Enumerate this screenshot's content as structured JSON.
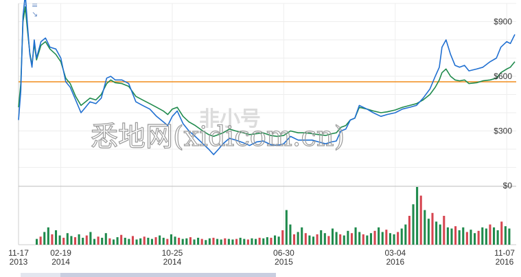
{
  "chart_data": {
    "type": "line",
    "x_tick_labels": [
      {
        "date": "11-17",
        "year": "2013"
      },
      {
        "date": "02-19",
        "year": "2014"
      },
      {
        "date": "10-25",
        "year": "2014"
      },
      {
        "date": "06-30",
        "year": "2015"
      },
      {
        "date": "03-04",
        "year": "2016"
      },
      {
        "date": "11-07",
        "year": "2016"
      }
    ],
    "y_ticks": [
      "$900",
      "$600",
      "$300",
      "$0"
    ],
    "ylim": [
      0,
      1000
    ],
    "reference_line": 570,
    "watermark": "悉地网(xidicom.cn)",
    "watermark_logo": "非小号",
    "series": [
      {
        "color": "#1f6fd1",
        "x": [
          "2013-11-17",
          "2013-11-22",
          "2013-11-27",
          "2013-12-02",
          "2013-12-07",
          "2013-12-12",
          "2013-12-17",
          "2013-12-22",
          "2013-12-27",
          "2014-01-06",
          "2014-01-16",
          "2014-01-26",
          "2014-02-08",
          "2014-02-19",
          "2014-03-02",
          "2014-03-12",
          "2014-03-24",
          "2014-04-05",
          "2014-04-15",
          "2014-04-25",
          "2014-05-08",
          "2014-05-20",
          "2014-06-01",
          "2014-06-10",
          "2014-06-20",
          "2014-07-05",
          "2014-07-20",
          "2014-08-05",
          "2014-08-20",
          "2014-09-05",
          "2014-09-20",
          "2014-10-05",
          "2014-10-15",
          "2014-10-25",
          "2014-11-05",
          "2014-11-18",
          "2014-12-01",
          "2014-12-15",
          "2015-01-01",
          "2015-01-14",
          "2015-01-25",
          "2015-02-05",
          "2015-02-15",
          "2015-03-01",
          "2015-03-15",
          "2015-04-01",
          "2015-04-15",
          "2015-05-01",
          "2015-05-15",
          "2015-06-01",
          "2015-06-15",
          "2015-06-30",
          "2015-07-15",
          "2015-08-01",
          "2015-08-15",
          "2015-09-01",
          "2015-09-15",
          "2015-10-01",
          "2015-10-15",
          "2015-10-25",
          "2015-11-04",
          "2015-11-15",
          "2015-11-25",
          "2015-12-05",
          "2015-12-15",
          "2016-01-01",
          "2016-01-15",
          "2016-02-01",
          "2016-02-15",
          "2016-03-04",
          "2016-03-20",
          "2016-04-05",
          "2016-04-20",
          "2016-05-05",
          "2016-05-20",
          "2016-06-01",
          "2016-06-10",
          "2016-06-16",
          "2016-06-25",
          "2016-07-05",
          "2016-07-15",
          "2016-07-25",
          "2016-08-05",
          "2016-08-15",
          "2016-09-01",
          "2016-09-15",
          "2016-10-01",
          "2016-10-15",
          "2016-10-25",
          "2016-11-07",
          "2016-11-15",
          "2016-11-25"
        ],
        "y": [
          360,
          520,
          930,
          1050,
          880,
          720,
          650,
          800,
          700,
          790,
          810,
          760,
          750,
          700,
          570,
          540,
          470,
          400,
          430,
          460,
          450,
          480,
          590,
          600,
          580,
          580,
          560,
          460,
          440,
          420,
          380,
          350,
          330,
          380,
          410,
          340,
          300,
          270,
          230,
          200,
          170,
          200,
          230,
          260,
          250,
          235,
          220,
          240,
          245,
          225,
          220,
          230,
          270,
          250,
          250,
          250,
          240,
          230,
          240,
          245,
          300,
          310,
          360,
          370,
          440,
          420,
          400,
          380,
          390,
          400,
          420,
          430,
          440,
          480,
          530,
          600,
          650,
          760,
          800,
          720,
          660,
          650,
          660,
          630,
          640,
          650,
          680,
          700,
          760,
          790,
          780,
          830
        ]
      },
      {
        "color": "#1f8a4c",
        "x": [
          "2013-11-17",
          "2013-11-22",
          "2013-11-27",
          "2013-12-02",
          "2013-12-07",
          "2013-12-12",
          "2013-12-17",
          "2013-12-22",
          "2013-12-27",
          "2014-01-06",
          "2014-01-16",
          "2014-01-26",
          "2014-02-08",
          "2014-02-19",
          "2014-03-02",
          "2014-03-12",
          "2014-03-24",
          "2014-04-05",
          "2014-04-15",
          "2014-04-25",
          "2014-05-08",
          "2014-05-20",
          "2014-06-01",
          "2014-06-10",
          "2014-06-20",
          "2014-07-05",
          "2014-07-20",
          "2014-08-05",
          "2014-08-20",
          "2014-09-05",
          "2014-09-20",
          "2014-10-05",
          "2014-10-15",
          "2014-10-25",
          "2014-11-05",
          "2014-11-18",
          "2014-12-01",
          "2014-12-15",
          "2015-01-01",
          "2015-01-14",
          "2015-01-25",
          "2015-02-05",
          "2015-02-15",
          "2015-03-01",
          "2015-03-15",
          "2015-04-01",
          "2015-04-15",
          "2015-05-01",
          "2015-05-15",
          "2015-06-01",
          "2015-06-15",
          "2015-06-30",
          "2015-07-15",
          "2015-08-01",
          "2015-08-15",
          "2015-09-01",
          "2015-09-15",
          "2015-10-01",
          "2015-10-15",
          "2015-10-25",
          "2015-11-04",
          "2015-11-15",
          "2015-11-25",
          "2015-12-05",
          "2015-12-15",
          "2016-01-01",
          "2016-01-15",
          "2016-02-01",
          "2016-02-15",
          "2016-03-04",
          "2016-03-20",
          "2016-04-05",
          "2016-04-20",
          "2016-05-05",
          "2016-05-20",
          "2016-06-01",
          "2016-06-10",
          "2016-06-16",
          "2016-06-25",
          "2016-07-05",
          "2016-07-15",
          "2016-07-25",
          "2016-08-05",
          "2016-08-15",
          "2016-09-01",
          "2016-09-15",
          "2016-10-01",
          "2016-10-15",
          "2016-10-25",
          "2016-11-07",
          "2016-11-15",
          "2016-11-25"
        ],
        "y": [
          430,
          560,
          900,
          980,
          850,
          730,
          660,
          780,
          690,
          770,
          790,
          750,
          720,
          680,
          590,
          560,
          490,
          440,
          460,
          480,
          470,
          500,
          560,
          580,
          565,
          560,
          545,
          490,
          470,
          450,
          430,
          410,
          390,
          420,
          430,
          380,
          350,
          330,
          300,
          280,
          270,
          280,
          290,
          310,
          300,
          290,
          280,
          285,
          290,
          275,
          270,
          275,
          300,
          290,
          290,
          285,
          280,
          275,
          285,
          290,
          320,
          330,
          360,
          370,
          430,
          420,
          410,
          400,
          405,
          415,
          430,
          440,
          450,
          470,
          500,
          540,
          580,
          620,
          640,
          600,
          580,
          575,
          580,
          560,
          565,
          575,
          580,
          590,
          620,
          640,
          650,
          680
        ]
      }
    ],
    "volume": {
      "color_up": "#1f8a4c",
      "color_down": "#d64550",
      "values": [
        0.1,
        0.14,
        0.22,
        0.3,
        0.18,
        0.25,
        0.16,
        0.12,
        0.2,
        0.15,
        0.13,
        0.18,
        0.12,
        0.16,
        0.22,
        0.1,
        0.14,
        0.12,
        0.2,
        0.11,
        0.09,
        0.13,
        0.17,
        0.12,
        0.1,
        0.15,
        0.09,
        0.11,
        0.14,
        0.12,
        0.1,
        0.13,
        0.16,
        0.12,
        0.1,
        0.18,
        0.14,
        0.12,
        0.1,
        0.11,
        0.13,
        0.09,
        0.12,
        0.1,
        0.08,
        0.11,
        0.12,
        0.1,
        0.09,
        0.11,
        0.1,
        0.09,
        0.1,
        0.12,
        0.1,
        0.09,
        0.11,
        0.1,
        0.12,
        0.11,
        0.13,
        0.12,
        0.16,
        0.14,
        0.25,
        0.6,
        0.35,
        0.18,
        0.22,
        0.3,
        0.2,
        0.16,
        0.14,
        0.18,
        0.25,
        0.2,
        0.15,
        0.28,
        0.22,
        0.18,
        0.16,
        0.24,
        0.2,
        0.3,
        0.22,
        0.18,
        0.16,
        0.2,
        0.24,
        0.3,
        0.22,
        0.26,
        0.2,
        0.18,
        0.22,
        0.28,
        0.35,
        0.5,
        0.7,
        1.0,
        0.85,
        0.6,
        0.45,
        0.55,
        0.4,
        0.35,
        0.5,
        0.3,
        0.28,
        0.32,
        0.25,
        0.3,
        0.22,
        0.26,
        0.2,
        0.24,
        0.3,
        0.28,
        0.35,
        0.3,
        0.25,
        0.4,
        0.32,
        0.28
      ]
    }
  }
}
